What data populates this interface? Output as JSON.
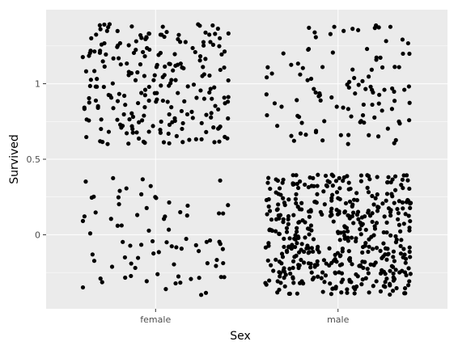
{
  "chart_data": {
    "type": "scatter",
    "subtype": "jitter",
    "title": "",
    "xlabel": "Sex",
    "ylabel": "Survived",
    "categories": [
      "female",
      "male"
    ],
    "y_ticks": [
      {
        "value": 0,
        "label": "0"
      },
      {
        "value": 0.5,
        "label": "0.5"
      },
      {
        "value": 1,
        "label": "1"
      }
    ],
    "ylim": [
      -0.49,
      1.49
    ],
    "jitter": {
      "width": 0.4,
      "height": 0.4
    },
    "groups": [
      {
        "category": "female",
        "survived": 1,
        "count": 233
      },
      {
        "category": "female",
        "survived": 0,
        "count": 81
      },
      {
        "category": "male",
        "survived": 1,
        "count": 109
      },
      {
        "category": "male",
        "survived": 0,
        "count": 468
      }
    ],
    "grid": true,
    "legend": "none",
    "colors": {
      "panel_background": "#ebebeb",
      "grid_major": "#ffffff",
      "point": "#000000",
      "axis_text": "#4d4d4d"
    }
  }
}
